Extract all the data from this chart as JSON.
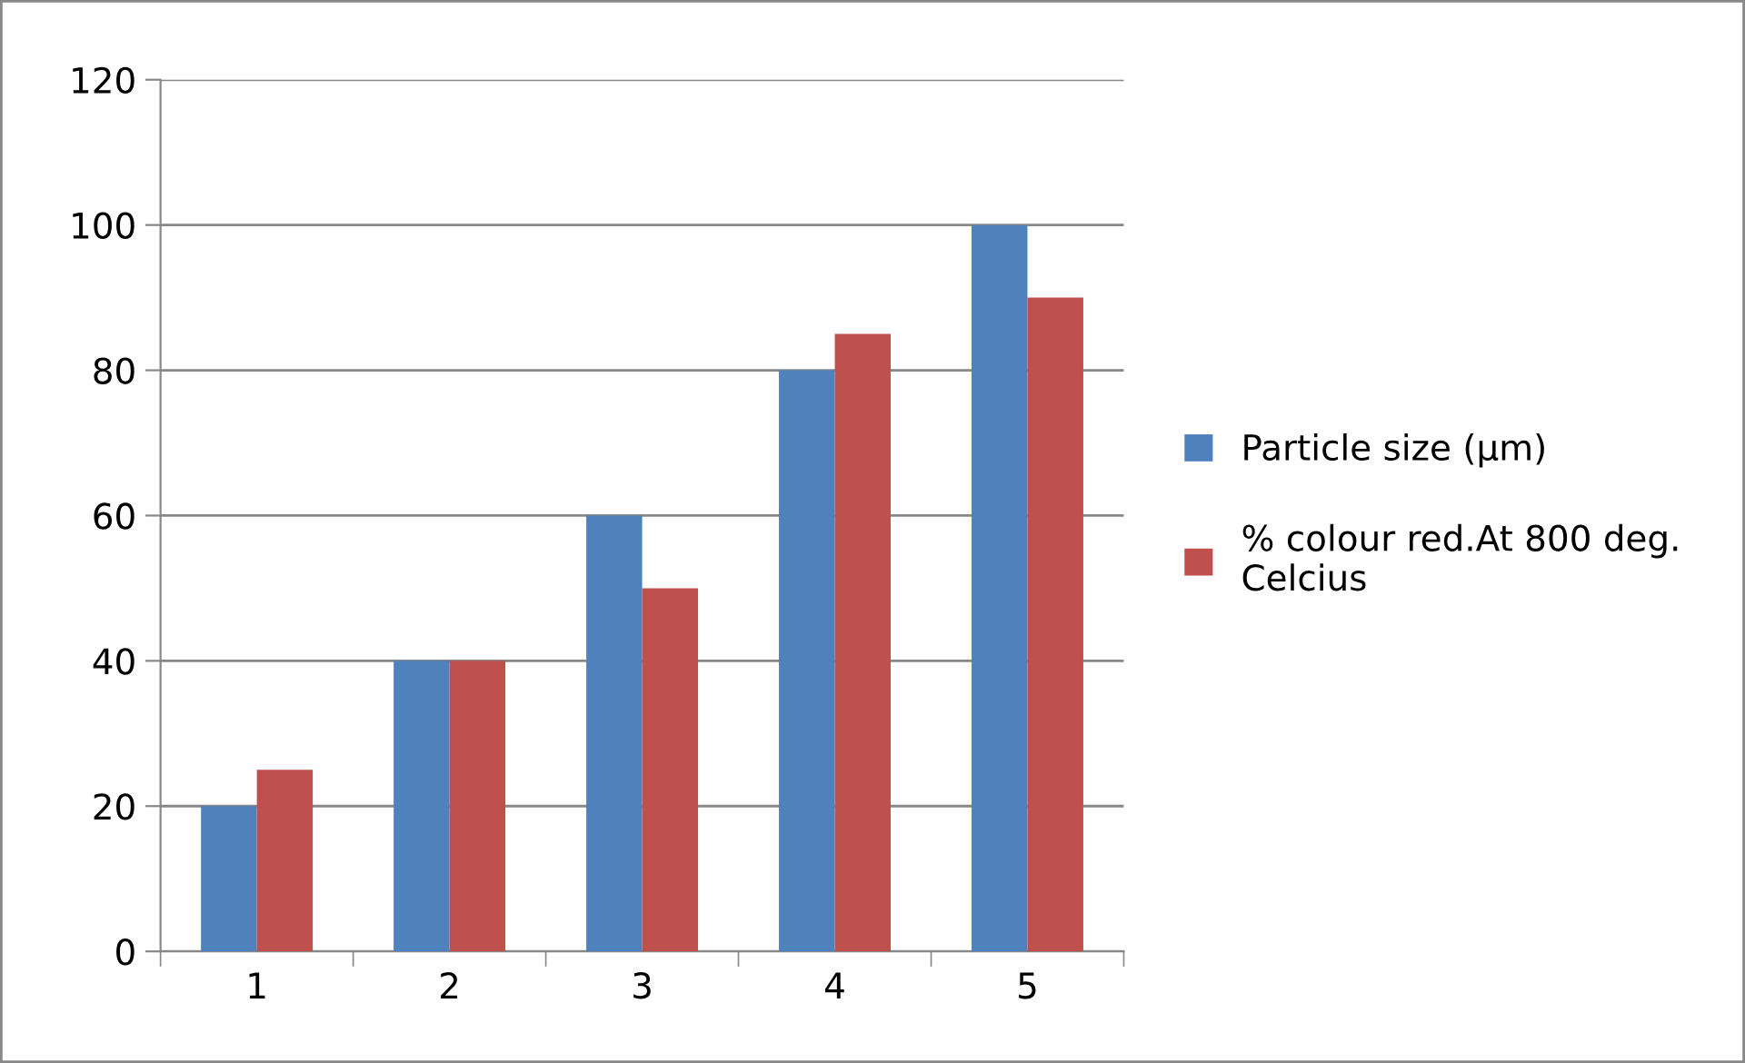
{
  "chart_data": {
    "type": "bar",
    "categories": [
      "1",
      "2",
      "3",
      "4",
      "5"
    ],
    "series": [
      {
        "name": "Particle size (µm)",
        "color": "#4f81bd",
        "values": [
          20,
          40,
          60,
          80,
          100
        ]
      },
      {
        "name": "% colour red.At 800 deg. Celcius",
        "color": "#c0504d",
        "values": [
          25,
          40,
          50,
          85,
          90
        ]
      }
    ],
    "ylim": [
      0,
      120
    ],
    "yticks": [
      0,
      20,
      40,
      60,
      80,
      100,
      120
    ],
    "grid": "y",
    "legend": "right"
  }
}
